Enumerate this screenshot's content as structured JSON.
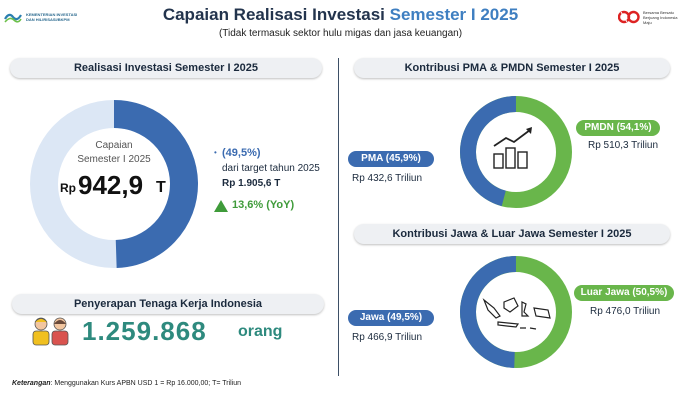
{
  "header": {
    "title_main": "Capaian Realisasi Investasi",
    "title_highlight": "Semester I 2025",
    "subtitle": "(Tidak termasuk sektor hulu migas dan jasa keuangan)",
    "logo_left_text": "KEMENTERIAN INVESTASI DAN HILIRISASI/BKPM",
    "logo_right_text": "Bersama Bersatu Berjuang Indonesia Maju"
  },
  "realisasi": {
    "heading": "Realisasi Investasi Semester I 2025",
    "center_line1": "Capaian",
    "center_line2": "Semester I 2025",
    "currency": "Rp",
    "value": "942,9",
    "unit": "T",
    "percent": "(49,5%)",
    "target_label": "dari target tahun 2025",
    "target_value": "Rp 1.905,6 T",
    "growth": "13,6% (YoY)",
    "achieved_fraction": 0.495
  },
  "tenaga_kerja": {
    "heading": "Penyerapan Tenaga Kerja Indonesia",
    "value": "1.259.868",
    "unit": "orang"
  },
  "pma_pmdn": {
    "heading": "Kontribusi PMA & PMDN Semester I 2025",
    "pma_label": "PMA (45,9%)",
    "pma_value": "Rp 432,6 Triliun",
    "pmdn_label": "PMDN (54,1%)",
    "pmdn_value": "Rp 510,3 Triliun",
    "pma_fraction": 0.459
  },
  "jawa": {
    "heading": "Kontribusi Jawa & Luar Jawa Semester I 2025",
    "jawa_label": "Jawa (49,5%)",
    "jawa_value": "Rp 466,9 Triliun",
    "luar_label": "Luar Jawa (50,5%)",
    "luar_value": "Rp 476,0 Triliun",
    "jawa_fraction": 0.495
  },
  "note": {
    "label": "Keterangan",
    "text": ": Menggunakan Kurs APBN USD 1 = Rp 16.000,00; T= Triliun"
  },
  "colors": {
    "blue": "#3b6bb0",
    "light_blue": "#dce7f5",
    "green": "#69b64b",
    "growth_green": "#3f9b3a",
    "navy": "#23344d",
    "highlight": "#3f7fc1",
    "teal": "#2e8a7e"
  }
}
